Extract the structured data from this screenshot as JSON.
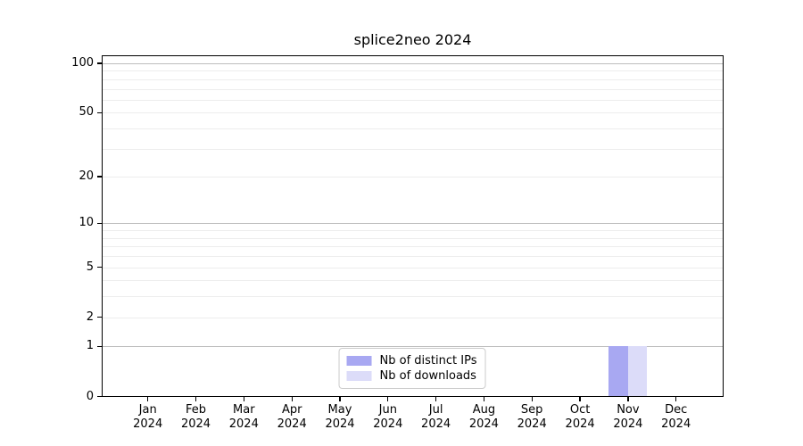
{
  "figure": {
    "title": "splice2neo 2024",
    "background": "#ffffff"
  },
  "chart_data": {
    "type": "bar",
    "title": "splice2neo 2024",
    "x_ticks": [
      {
        "month": "Jan",
        "year": "2024"
      },
      {
        "month": "Feb",
        "year": "2024"
      },
      {
        "month": "Mar",
        "year": "2024"
      },
      {
        "month": "Apr",
        "year": "2024"
      },
      {
        "month": "May",
        "year": "2024"
      },
      {
        "month": "Jun",
        "year": "2024"
      },
      {
        "month": "Jul",
        "year": "2024"
      },
      {
        "month": "Aug",
        "year": "2024"
      },
      {
        "month": "Sep",
        "year": "2024"
      },
      {
        "month": "Oct",
        "year": "2024"
      },
      {
        "month": "Nov",
        "year": "2024"
      },
      {
        "month": "Dec",
        "year": "2024"
      }
    ],
    "series": [
      {
        "name": "Nb of distinct IPs",
        "color": "#a8a8f2",
        "values": [
          0,
          0,
          0,
          0,
          0,
          0,
          0,
          0,
          0,
          0,
          1,
          0
        ]
      },
      {
        "name": "Nb of downloads",
        "color": "#dcdcf9",
        "values": [
          0,
          0,
          0,
          0,
          0,
          0,
          0,
          0,
          0,
          0,
          1,
          0
        ]
      }
    ],
    "y_axis": {
      "scale": "log10(value+1)",
      "ticks": [
        0,
        1,
        2,
        5,
        10,
        20,
        50,
        100
      ],
      "major_gridlines": [
        1,
        10,
        100
      ],
      "minor_gridlines": [
        2,
        3,
        4,
        5,
        6,
        7,
        8,
        9,
        20,
        30,
        40,
        50,
        60,
        70,
        80,
        90
      ],
      "ylim": [
        0,
        112
      ]
    },
    "legend": {
      "position": "bottom-center",
      "entries": [
        "Nb of distinct IPs",
        "Nb of downloads"
      ]
    },
    "grid": true
  },
  "colors": {
    "bar_distinct_ips": "#a8a8f2",
    "bar_downloads": "#dcdcf9",
    "major_gridline": "#bdbdbd",
    "minor_gridline": "#ededed",
    "axis": "#000000",
    "legend_border": "#cccccc"
  }
}
